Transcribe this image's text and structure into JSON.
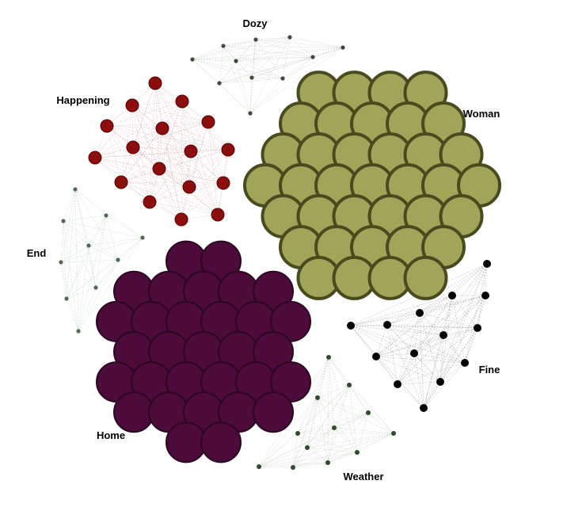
{
  "clusters": [
    {
      "id": "dozy",
      "label": "Dozy",
      "node_color": "#3f4a3a",
      "node_count": 10
    },
    {
      "id": "happening",
      "label": "Happening",
      "node_color": "#8b0d0d",
      "node_count": 18
    },
    {
      "id": "woman",
      "label": "Woman",
      "node_color": "#a0a659",
      "node_count": 44
    },
    {
      "id": "end",
      "label": "End",
      "node_color": "#4f6b55",
      "node_count": 10
    },
    {
      "id": "home",
      "label": "Home",
      "node_color": "#4d0b3b",
      "node_count": 42
    },
    {
      "id": "fine",
      "label": "Fine",
      "node_color": "#050505",
      "node_count": 18
    },
    {
      "id": "weather",
      "label": "Weather",
      "node_color": "#2f4a2c",
      "node_count": 14
    }
  ]
}
